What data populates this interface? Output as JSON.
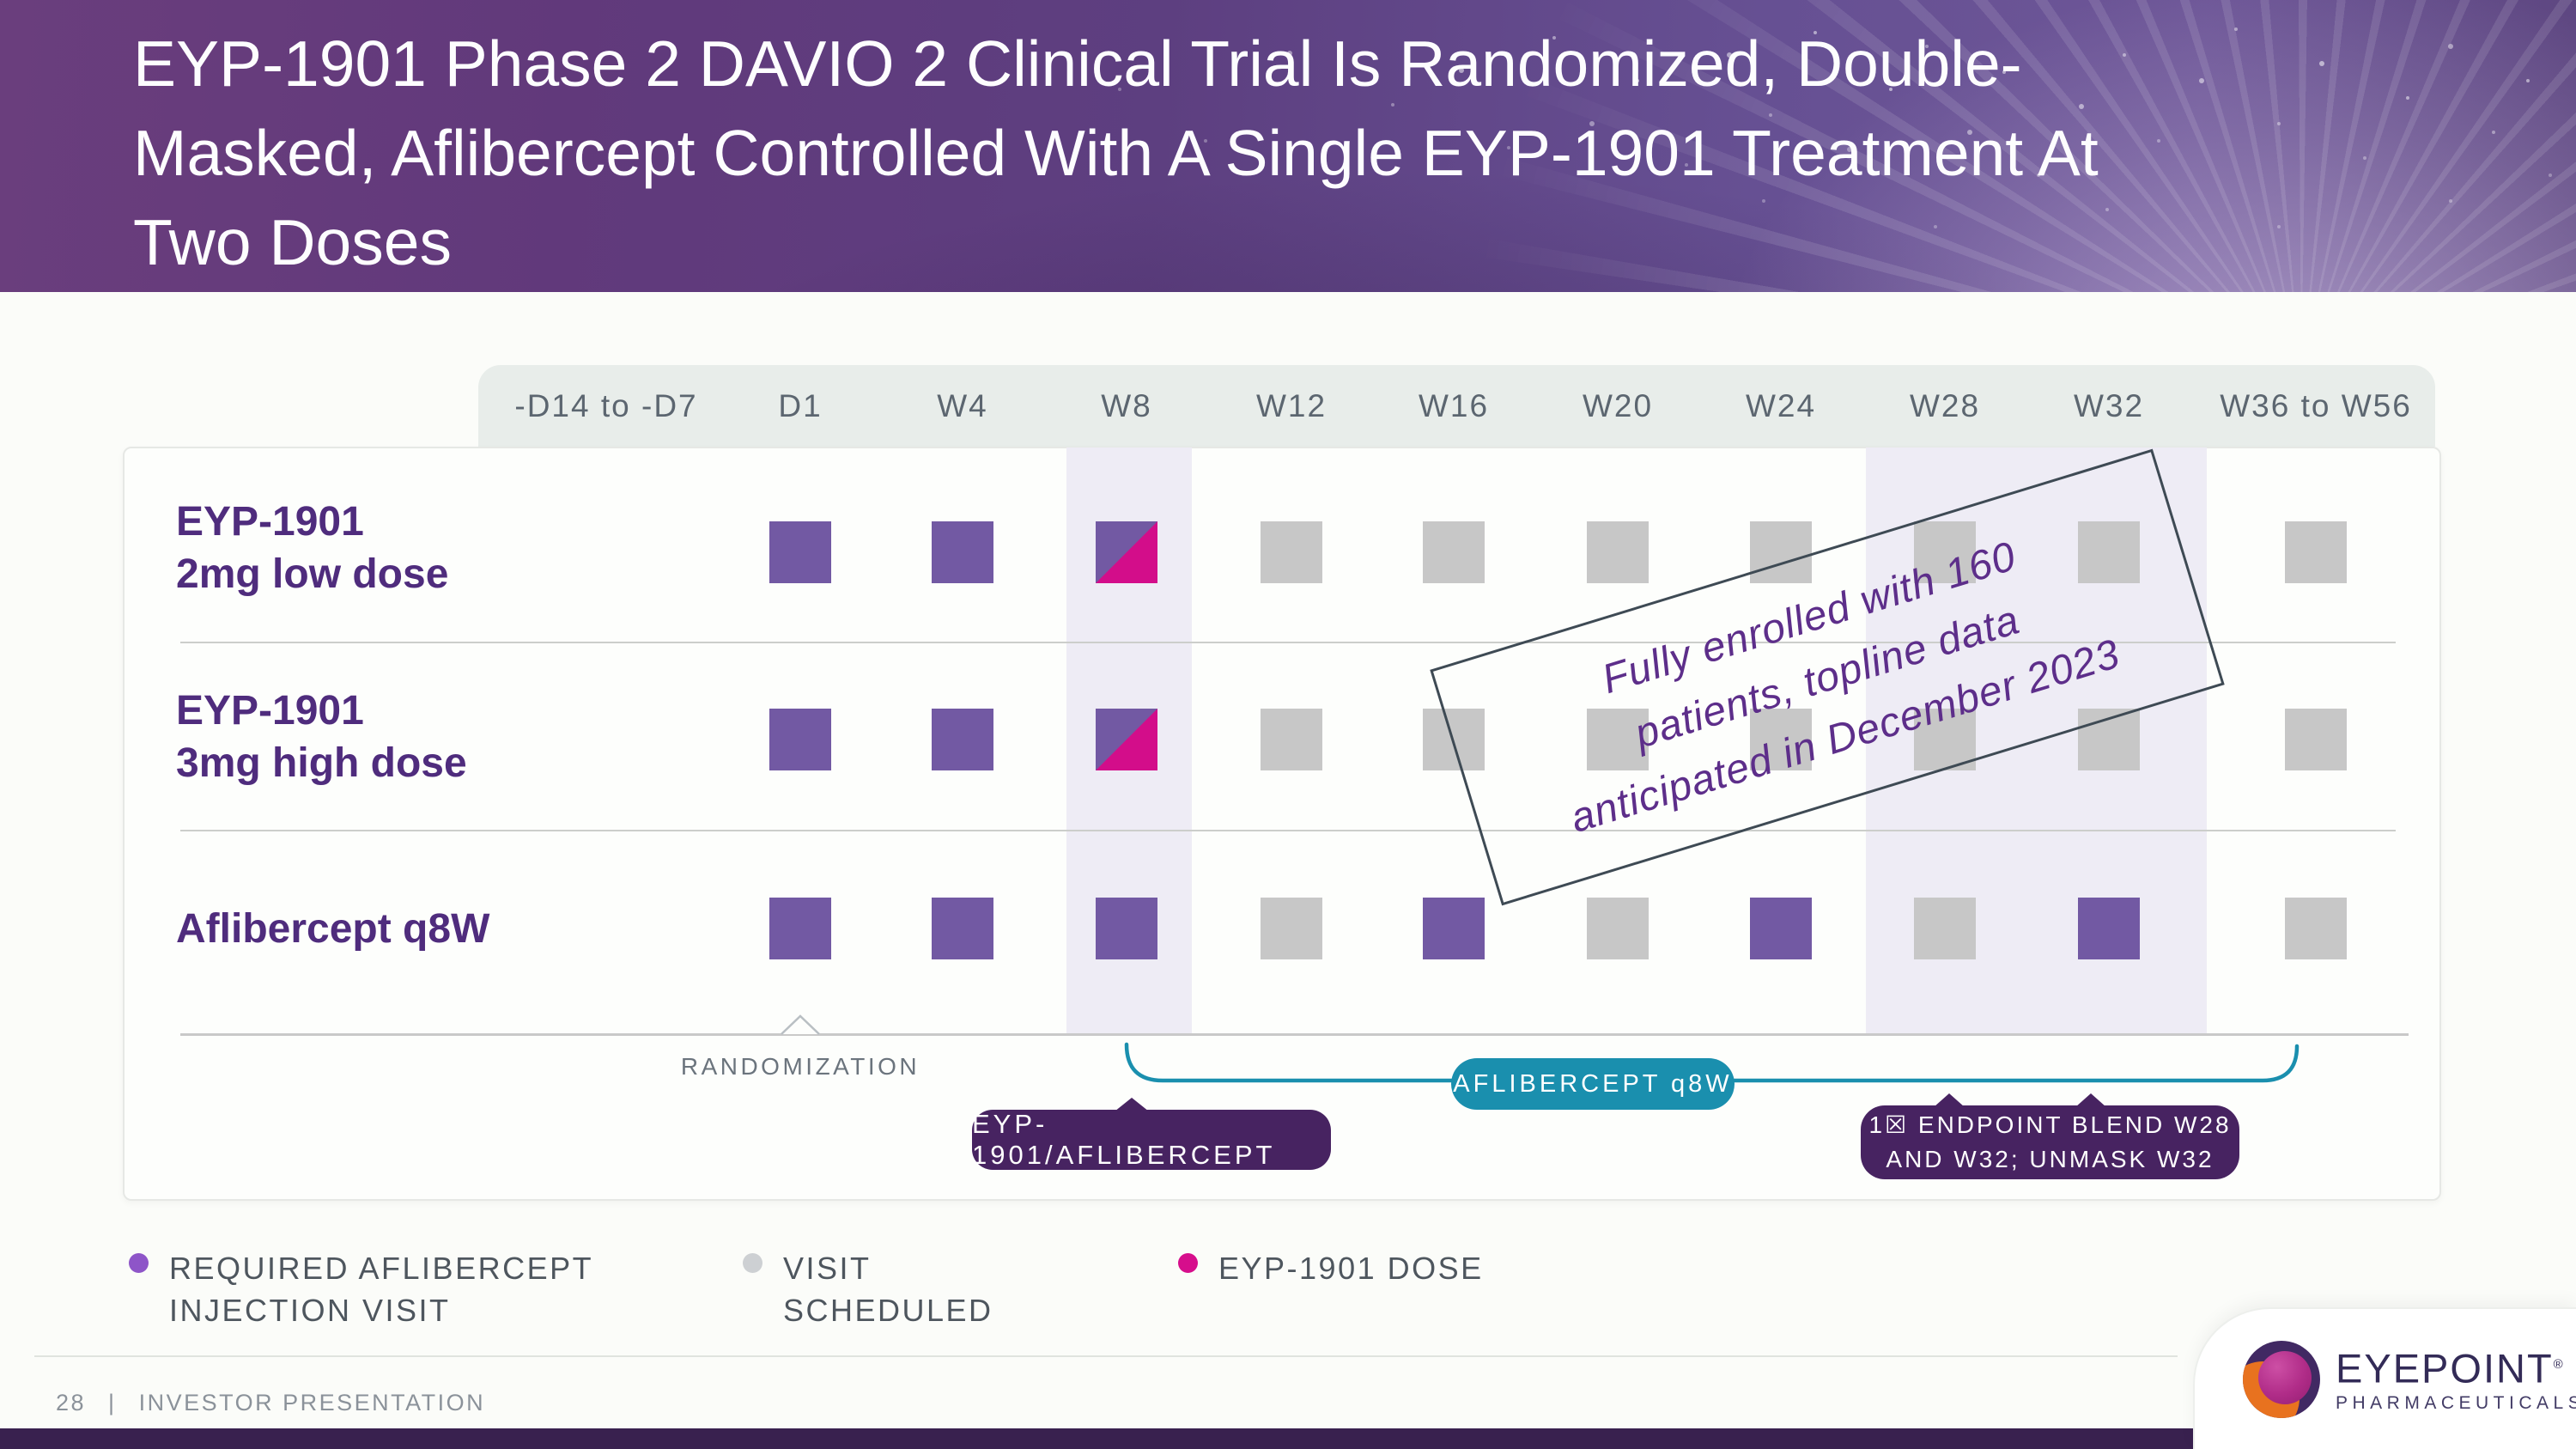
{
  "slide": {
    "title_lines": [
      "EYP-1901 Phase 2 DAVIO 2 Clinical Trial Is Randomized, Double-",
      "Masked, Aflibercept Controlled With A Single EYP-1901 Treatment At",
      "Two Doses"
    ],
    "page_number": "28",
    "footer_separator": "|",
    "footer_label": "INVESTOR PRESENTATION"
  },
  "timeline": {
    "columns": [
      "-D14 to -D7",
      "D1",
      "W4",
      "W8",
      "W12",
      "W16",
      "W20",
      "W24",
      "W28",
      "W32",
      "W36 to W56"
    ]
  },
  "grid": {
    "rows": [
      {
        "label_line1": "EYP-1901",
        "label_line2": "2mg low dose",
        "cells": [
          null,
          "required",
          "required",
          "dose",
          "scheduled",
          "scheduled",
          "scheduled",
          "scheduled",
          "scheduled",
          "scheduled",
          "scheduled"
        ]
      },
      {
        "label_line1": "EYP-1901",
        "label_line2": "3mg high dose",
        "cells": [
          null,
          "required",
          "required",
          "dose",
          "scheduled",
          "scheduled",
          "scheduled",
          "scheduled",
          "scheduled",
          "scheduled",
          "scheduled"
        ]
      },
      {
        "label_line1": "Aflibercept q8W",
        "label_line2": "",
        "cells": [
          null,
          "required",
          "required",
          "required",
          "scheduled",
          "required",
          "scheduled",
          "required",
          "scheduled",
          "required",
          "scheduled"
        ]
      }
    ]
  },
  "annotations": {
    "rotated_note_lines": [
      "Fully enrolled with 160",
      "patients, topline data",
      "anticipated in December 2023"
    ],
    "randomization_label": "RANDOMIZATION",
    "aflibercept_bracket_label": "AFLIBERCEPT q8W",
    "eyp_aflibercept_label": "EYP-1901/AFLIBERCEPT",
    "endpoint_line1": "1☒ ENDPOINT BLEND W28",
    "endpoint_line2": "AND W32;  UNMASK W32"
  },
  "legend": {
    "items": [
      {
        "type": "required",
        "label_line1": "REQUIRED AFLIBERCEPT",
        "label_line2": "INJECTION VISIT",
        "color": "#8e55c8"
      },
      {
        "type": "scheduled",
        "label_line1": "VISIT",
        "label_line2": "SCHEDULED",
        "color": "#cdd0d3"
      },
      {
        "type": "dose",
        "label_line1": "EYP-1901 DOSE",
        "label_line2": "",
        "color": "#d60e8c"
      }
    ]
  },
  "logo": {
    "wordmark": "EYEPOINT",
    "trademark": "®",
    "subtitle": "PHARMACEUTICALS"
  },
  "colors": {
    "header_purple": "#61397b",
    "required_visit_square": "#7259a3",
    "scheduled_visit_square": "#c7c7c7",
    "eyp_dose_pink": "#d30d8a",
    "legend_required_dot": "#8e55c8",
    "teal_pill": "#1a8fae",
    "dark_purple_pill": "#472361",
    "row_label_purple": "#4f2c7d",
    "note_text_purple": "#5d2e8a",
    "column_band": "#eeecf5",
    "bottom_bar": "#39214f"
  }
}
